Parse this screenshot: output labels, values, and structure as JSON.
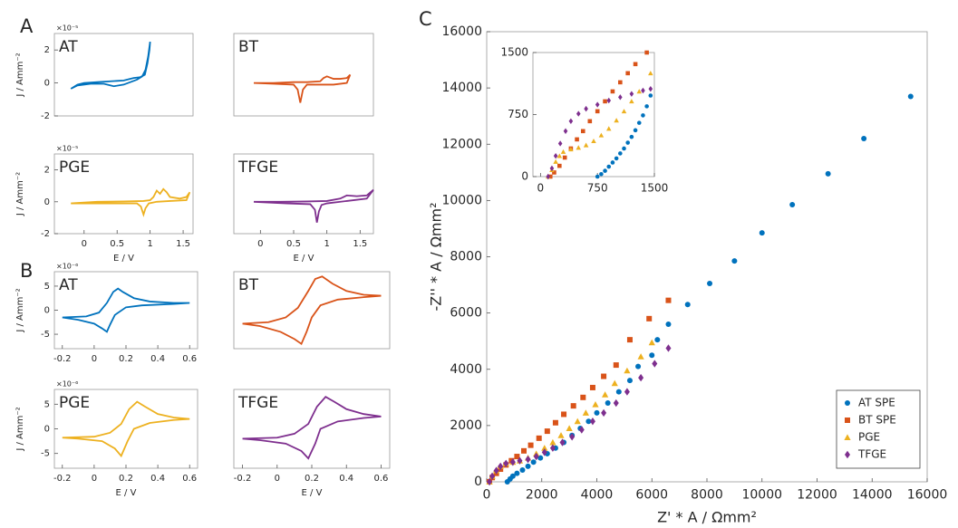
{
  "chart_data": [
    {
      "type": "line",
      "panel_label": "A",
      "label": "AT",
      "exponent": "×10⁻⁵",
      "ylabel": "J / Amm⁻²",
      "color": "#0072bd",
      "xlim": [
        -0.45,
        1.65
      ],
      "ylim": [
        -2,
        3
      ],
      "yticks": [
        -2,
        0,
        2
      ],
      "x": [
        -0.2,
        -0.1,
        0,
        0.2,
        0.4,
        0.6,
        0.75,
        0.85,
        0.92,
        0.96,
        0.99,
        1.0,
        0.97,
        0.93,
        0.88,
        0.8,
        0.6,
        0.45,
        0.3,
        0.1,
        -0.1,
        -0.2
      ],
      "values": [
        -0.35,
        -0.1,
        0,
        0.05,
        0.1,
        0.15,
        0.3,
        0.35,
        0.5,
        1.2,
        2.0,
        2.5,
        1.6,
        0.8,
        0.4,
        0.2,
        -0.1,
        -0.2,
        -0.05,
        -0.05,
        -0.15,
        -0.35
      ]
    },
    {
      "type": "line",
      "label": "BT",
      "color": "#d95319",
      "xlim": [
        -0.4,
        1.7
      ],
      "ylim": [
        -2,
        3
      ],
      "x": [
        -0.1,
        0.2,
        0.5,
        0.7,
        0.9,
        0.95,
        1.0,
        1.1,
        1.2,
        1.3,
        1.35,
        1.3,
        1.1,
        0.9,
        0.7,
        0.64,
        0.6,
        0.56,
        0.5,
        0.2,
        -0.1
      ],
      "values": [
        0,
        0,
        0.05,
        0.05,
        0.1,
        0.3,
        0.4,
        0.25,
        0.25,
        0.3,
        0.5,
        0,
        -0.1,
        -0.1,
        -0.1,
        -0.4,
        -1.2,
        -0.4,
        -0.1,
        -0.05,
        0
      ]
    },
    {
      "type": "line",
      "label": "PGE",
      "exponent": "×10⁻⁵",
      "ylabel": "J / Amm⁻²",
      "xlabel": "E / V",
      "color": "#edb120",
      "xlim": [
        -0.45,
        1.65
      ],
      "ylim": [
        -2,
        3
      ],
      "yticks": [
        -2,
        0,
        2
      ],
      "xticks": [
        0,
        0.5,
        1,
        1.5
      ],
      "x": [
        -0.2,
        0.2,
        0.6,
        0.9,
        1.0,
        1.05,
        1.1,
        1.15,
        1.2,
        1.25,
        1.3,
        1.45,
        1.55,
        1.6,
        1.55,
        1.3,
        1.1,
        0.98,
        0.93,
        0.9,
        0.86,
        0.8,
        0.5,
        0.2,
        -0.2
      ],
      "values": [
        -0.1,
        0,
        0.02,
        0.05,
        0.1,
        0.3,
        0.7,
        0.5,
        0.8,
        0.6,
        0.3,
        0.2,
        0.3,
        0.6,
        0.1,
        0.05,
        0,
        -0.1,
        -0.4,
        -0.8,
        -0.3,
        -0.1,
        -0.1,
        -0.1,
        -0.1
      ]
    },
    {
      "type": "line",
      "label": "TFGE",
      "xlabel": "E / V",
      "color": "#7e2f8e",
      "xlim": [
        -0.4,
        1.7
      ],
      "ylim": [
        -2,
        3
      ],
      "xticks": [
        0,
        0.5,
        1,
        1.5
      ],
      "x": [
        -0.1,
        0.3,
        0.7,
        1.0,
        1.2,
        1.3,
        1.45,
        1.6,
        1.7,
        1.6,
        1.3,
        1.0,
        0.92,
        0.88,
        0.85,
        0.82,
        0.75,
        0.4,
        -0.1
      ],
      "values": [
        0,
        0,
        0.02,
        0.05,
        0.2,
        0.4,
        0.35,
        0.4,
        0.75,
        0.2,
        0.05,
        -0.1,
        -0.2,
        -0.6,
        -1.3,
        -0.5,
        -0.15,
        -0.1,
        0
      ]
    },
    {
      "type": "line",
      "panel_label": "B",
      "label": "AT",
      "exponent": "×10⁻⁶",
      "ylabel": "J / Amm⁻²",
      "color": "#0072bd",
      "xlim": [
        -0.25,
        0.65
      ],
      "ylim": [
        -8,
        8
      ],
      "yticks": [
        -5,
        0,
        5
      ],
      "xticks": [
        -0.2,
        0,
        0.2,
        0.4,
        0.6
      ],
      "x": [
        -0.2,
        -0.05,
        0.03,
        0.08,
        0.12,
        0.15,
        0.18,
        0.25,
        0.35,
        0.5,
        0.6,
        0.5,
        0.3,
        0.2,
        0.13,
        0.1,
        0.08,
        0.05,
        0,
        -0.1,
        -0.2
      ],
      "values": [
        -1.5,
        -1.3,
        -0.5,
        1.5,
        3.8,
        4.5,
        3.8,
        2.5,
        1.8,
        1.5,
        1.5,
        1.3,
        1.0,
        0.6,
        -1.0,
        -3.0,
        -4.5,
        -3.8,
        -2.8,
        -2.0,
        -1.5
      ]
    },
    {
      "type": "line",
      "label": "BT",
      "color": "#d95319",
      "xlim": [
        -0.25,
        0.65
      ],
      "ylim": [
        -8,
        8
      ],
      "x": [
        -0.2,
        -0.05,
        0.05,
        0.12,
        0.18,
        0.22,
        0.26,
        0.32,
        0.4,
        0.5,
        0.6,
        0.5,
        0.35,
        0.25,
        0.2,
        0.17,
        0.14,
        0.1,
        0.02,
        -0.1,
        -0.2
      ],
      "values": [
        -2.8,
        -2.5,
        -1.5,
        0.5,
        4,
        6.5,
        7,
        5.5,
        4,
        3.2,
        3,
        2.7,
        2.2,
        1.0,
        -1.5,
        -4.5,
        -7,
        -6,
        -4.5,
        -3.3,
        -2.8
      ]
    },
    {
      "type": "line",
      "label": "PGE",
      "exponent": "×10⁻⁶",
      "ylabel": "J / Amm⁻²",
      "xlabel": "E / V",
      "color": "#edb120",
      "xlim": [
        -0.25,
        0.65
      ],
      "ylim": [
        -8,
        8
      ],
      "yticks": [
        -5,
        0,
        5
      ],
      "xticks": [
        -0.2,
        0,
        0.2,
        0.4,
        0.6
      ],
      "x": [
        -0.2,
        0,
        0.1,
        0.17,
        0.22,
        0.27,
        0.32,
        0.4,
        0.5,
        0.6,
        0.5,
        0.35,
        0.25,
        0.21,
        0.17,
        0.13,
        0.05,
        -0.1,
        -0.2
      ],
      "values": [
        -1.8,
        -1.6,
        -0.8,
        1,
        4,
        5.5,
        4.5,
        3,
        2.3,
        2,
        1.8,
        1.2,
        0,
        -2.5,
        -5.5,
        -4,
        -2.5,
        -2,
        -1.8
      ]
    },
    {
      "type": "line",
      "label": "TFGE",
      "xlabel": "E / V",
      "color": "#7e2f8e",
      "xlim": [
        -0.25,
        0.65
      ],
      "ylim": [
        -8,
        8
      ],
      "xticks": [
        -0.2,
        0,
        0.2,
        0.4,
        0.6
      ],
      "x": [
        -0.2,
        0,
        0.1,
        0.18,
        0.23,
        0.28,
        0.33,
        0.4,
        0.5,
        0.6,
        0.5,
        0.35,
        0.25,
        0.22,
        0.18,
        0.14,
        0.05,
        -0.1,
        -0.2
      ],
      "values": [
        -2,
        -1.8,
        -1,
        1,
        4.5,
        6.5,
        5.5,
        4,
        3,
        2.5,
        2.2,
        1.5,
        0,
        -3,
        -6,
        -4.5,
        -3,
        -2.3,
        -2
      ]
    },
    {
      "type": "scatter",
      "panel_label": "C",
      "xlabel": "Z' * A / Ωmm²",
      "ylabel": "-Z'' * A / Ωmm²",
      "legend": "lower right",
      "xlim": [
        0,
        16000
      ],
      "ylim": [
        0,
        16000
      ],
      "xticks": [
        0,
        2000,
        4000,
        6000,
        8000,
        10000,
        12000,
        14000,
        16000
      ],
      "yticks": [
        0,
        2000,
        4000,
        6000,
        8000,
        10000,
        12000,
        14000,
        16000
      ],
      "series": [
        {
          "name": "AT SPE",
          "color": "#0072bd",
          "marker": "circle",
          "x": [
            750,
            850,
            950,
            1100,
            1300,
            1500,
            1700,
            1950,
            2200,
            2500,
            2800,
            3100,
            3400,
            3700,
            4000,
            4400,
            4800,
            5200,
            5500,
            6000,
            6200,
            6600,
            7300,
            8100,
            9000,
            10000,
            11100,
            12400,
            13700,
            15400
          ],
          "values": [
            0,
            100,
            200,
            300,
            420,
            550,
            700,
            850,
            1000,
            1200,
            1400,
            1650,
            1900,
            2150,
            2450,
            2800,
            3200,
            3600,
            4100,
            4500,
            5050,
            5600,
            6300,
            7050,
            7850,
            8850,
            9850,
            10950,
            12200,
            13700
          ]
        },
        {
          "name": "BT SPE",
          "color": "#d95319",
          "marker": "square",
          "x": [
            100,
            200,
            350,
            500,
            700,
            900,
            1100,
            1350,
            1600,
            1900,
            2200,
            2500,
            2800,
            3150,
            3500,
            3850,
            4250,
            4700,
            5200,
            5900,
            6600
          ],
          "values": [
            0,
            150,
            300,
            450,
            600,
            750,
            900,
            1100,
            1300,
            1550,
            1800,
            2100,
            2400,
            2700,
            3000,
            3350,
            3750,
            4150,
            5050,
            5800,
            6450
          ]
        },
        {
          "name": "PGE",
          "color": "#edb120",
          "marker": "triangle",
          "x": [
            100,
            200,
            350,
            500,
            700,
            950,
            1200,
            1500,
            1800,
            2100,
            2400,
            2700,
            3000,
            3300,
            3600,
            3950,
            4300,
            4650,
            5100,
            5600,
            6000
          ],
          "values": [
            0,
            200,
            400,
            550,
            650,
            700,
            750,
            850,
            1000,
            1200,
            1400,
            1650,
            1900,
            2150,
            2450,
            2750,
            3100,
            3500,
            3950,
            4450,
            4950
          ]
        },
        {
          "name": "TFGE",
          "color": "#7e2f8e",
          "marker": "diamond",
          "x": [
            100,
            200,
            350,
            500,
            700,
            950,
            1200,
            1500,
            1800,
            2100,
            2400,
            2750,
            3100,
            3450,
            3850,
            4250,
            4700,
            5100,
            5600,
            6100,
            6600
          ],
          "values": [
            0,
            200,
            400,
            550,
            650,
            700,
            750,
            800,
            900,
            1050,
            1200,
            1400,
            1600,
            1850,
            2150,
            2450,
            2800,
            3200,
            3700,
            4200,
            4750
          ]
        }
      ]
    },
    {
      "type": "scatter",
      "xlim": [
        -100,
        1500
      ],
      "ylim": [
        0,
        1500
      ],
      "xticks": [
        0,
        750,
        1500
      ],
      "yticks": [
        0,
        750,
        1500
      ],
      "series": [
        {
          "color": "#0072bd",
          "marker": "circle",
          "x": [
            750,
            800,
            850,
            900,
            950,
            1000,
            1050,
            1100,
            1150,
            1200,
            1250,
            1300,
            1350,
            1400,
            1450
          ],
          "values": [
            0,
            30,
            70,
            120,
            170,
            220,
            280,
            340,
            410,
            480,
            560,
            650,
            740,
            850,
            980
          ]
        },
        {
          "color": "#d95319",
          "marker": "square",
          "x": [
            130,
            180,
            250,
            320,
            400,
            480,
            560,
            650,
            750,
            850,
            950,
            1050,
            1150,
            1250,
            1400
          ],
          "values": [
            0,
            50,
            130,
            230,
            340,
            450,
            550,
            670,
            790,
            910,
            1030,
            1140,
            1250,
            1360,
            1500
          ]
        },
        {
          "color": "#edb120",
          "marker": "triangle",
          "x": [
            100,
            150,
            200,
            250,
            300,
            400,
            500,
            600,
            700,
            800,
            900,
            1000,
            1100,
            1200,
            1300,
            1450
          ],
          "values": [
            0,
            80,
            180,
            250,
            300,
            330,
            350,
            380,
            430,
            500,
            580,
            680,
            790,
            910,
            1030,
            1250
          ]
        },
        {
          "color": "#7e2f8e",
          "marker": "diamond",
          "x": [
            100,
            150,
            200,
            260,
            330,
            400,
            500,
            600,
            750,
            900,
            1050,
            1200,
            1350,
            1450
          ],
          "values": [
            0,
            100,
            250,
            400,
            550,
            670,
            760,
            820,
            870,
            920,
            960,
            1000,
            1040,
            1060
          ]
        }
      ]
    }
  ]
}
